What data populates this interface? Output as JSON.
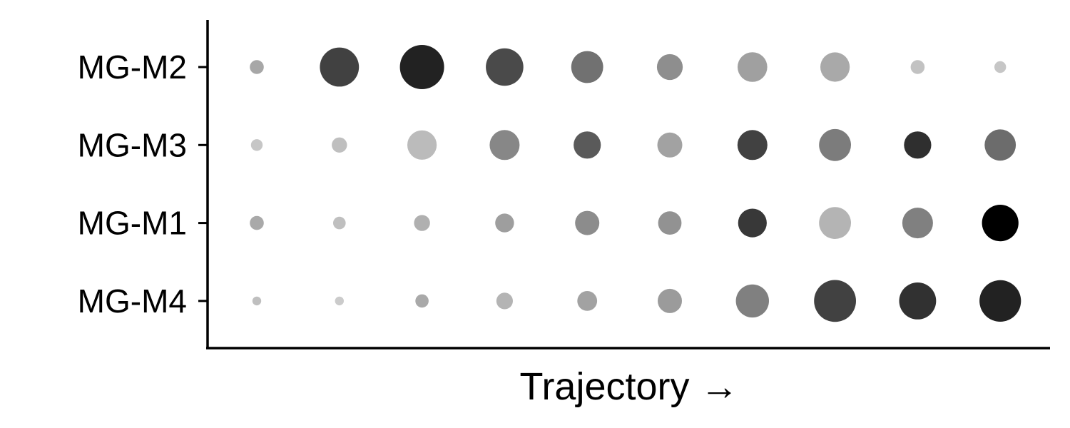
{
  "chart_data": {
    "type": "dot-matrix",
    "xlabel": "Trajectory →",
    "ylabel": "",
    "title": "",
    "grid": false,
    "legend": "none",
    "x": [
      1,
      2,
      3,
      4,
      5,
      6,
      7,
      8,
      9,
      10
    ],
    "rows": [
      "MG-M2",
      "MG-M3",
      "MG-M1",
      "MG-M4"
    ],
    "series": [
      {
        "name": "MG-M2",
        "size": [
          0.1,
          0.78,
          1.0,
          0.72,
          0.52,
          0.34,
          0.45,
          0.44,
          0.1,
          0.07
        ],
        "shade": [
          0.26,
          0.71,
          0.85,
          0.67,
          0.5,
          0.37,
          0.29,
          0.25,
          0.14,
          0.12
        ]
      },
      {
        "name": "MG-M3",
        "size": [
          0.07,
          0.12,
          0.44,
          0.46,
          0.38,
          0.32,
          0.46,
          0.52,
          0.38,
          0.5
        ],
        "shade": [
          0.12,
          0.15,
          0.17,
          0.4,
          0.6,
          0.28,
          0.71,
          0.45,
          0.79,
          0.52
        ]
      },
      {
        "name": "MG-M1",
        "size": [
          0.1,
          0.08,
          0.13,
          0.18,
          0.3,
          0.28,
          0.42,
          0.52,
          0.48,
          0.68
        ],
        "shade": [
          0.25,
          0.15,
          0.22,
          0.3,
          0.38,
          0.35,
          0.75,
          0.2,
          0.43,
          1.0
        ]
      },
      {
        "name": "MG-M4",
        "size": [
          0.04,
          0.04,
          0.09,
          0.14,
          0.2,
          0.3,
          0.56,
          0.9,
          0.7,
          0.88
        ],
        "shade": [
          0.15,
          0.1,
          0.25,
          0.2,
          0.28,
          0.31,
          0.43,
          0.71,
          0.78,
          0.85
        ]
      }
    ]
  }
}
